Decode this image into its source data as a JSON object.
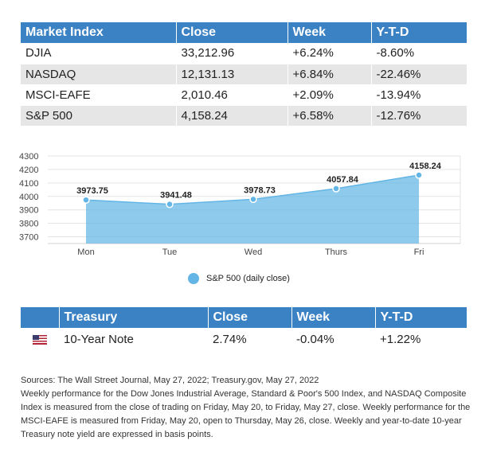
{
  "market": {
    "headers": [
      "Market Index",
      "Close",
      "Week",
      "Y-T-D"
    ],
    "rows": [
      [
        "DJIA",
        "33,212.96",
        "+6.24%",
        "-8.60%"
      ],
      [
        "NASDAQ",
        "12,131.13",
        "+6.84%",
        "-22.46%"
      ],
      [
        "MSCI-EAFE",
        "2,010.46",
        "+2.09%",
        "-13.94%"
      ],
      [
        "S&P 500",
        "4,158.24",
        "+6.58%",
        "-12.76%"
      ]
    ]
  },
  "chart_data": {
    "type": "area",
    "categories": [
      "Mon",
      "Tue",
      "Wed",
      "Thurs",
      "Fri"
    ],
    "series": [
      {
        "name": "S&P 500 (daily close)",
        "values": [
          3973.75,
          3941.48,
          3978.73,
          4057.84,
          4158.24
        ]
      }
    ],
    "data_labels": [
      "3973.75",
      "3941.48",
      "3978.73",
      "4057.84",
      "4158.24"
    ],
    "y_ticks": [
      3700,
      3800,
      3900,
      4000,
      4100,
      4200,
      4300
    ],
    "ylim": [
      3650,
      4300
    ],
    "grid": "horizontal",
    "legend": "bottom",
    "color": "#62b5e5"
  },
  "legend": {
    "label": "S&P 500 (daily close)"
  },
  "treasury": {
    "headers": [
      "Treasury",
      "Close",
      "Week",
      "Y-T-D"
    ],
    "row": {
      "icon": "us-flag-icon",
      "name": "10-Year Note",
      "close": "2.74%",
      "week": "-0.04%",
      "ytd": "+1.22%"
    }
  },
  "notes": {
    "sources": "Sources: The Wall Street Journal, May 27, 2022; Treasury.gov, May 27, 2022",
    "text": "Weekly performance for the Dow Jones Industrial Average, Standard & Poor's 500 Index, and NASDAQ Composite Index is measured from the close of trading on Friday, May 20, to Friday, May 27, close. Weekly performance for the MSCI-EAFE is measured from Friday, May 20, open to Thursday, May 26, close. Weekly and year-to-date 10-year Treasury note yield are expressed in basis points."
  }
}
